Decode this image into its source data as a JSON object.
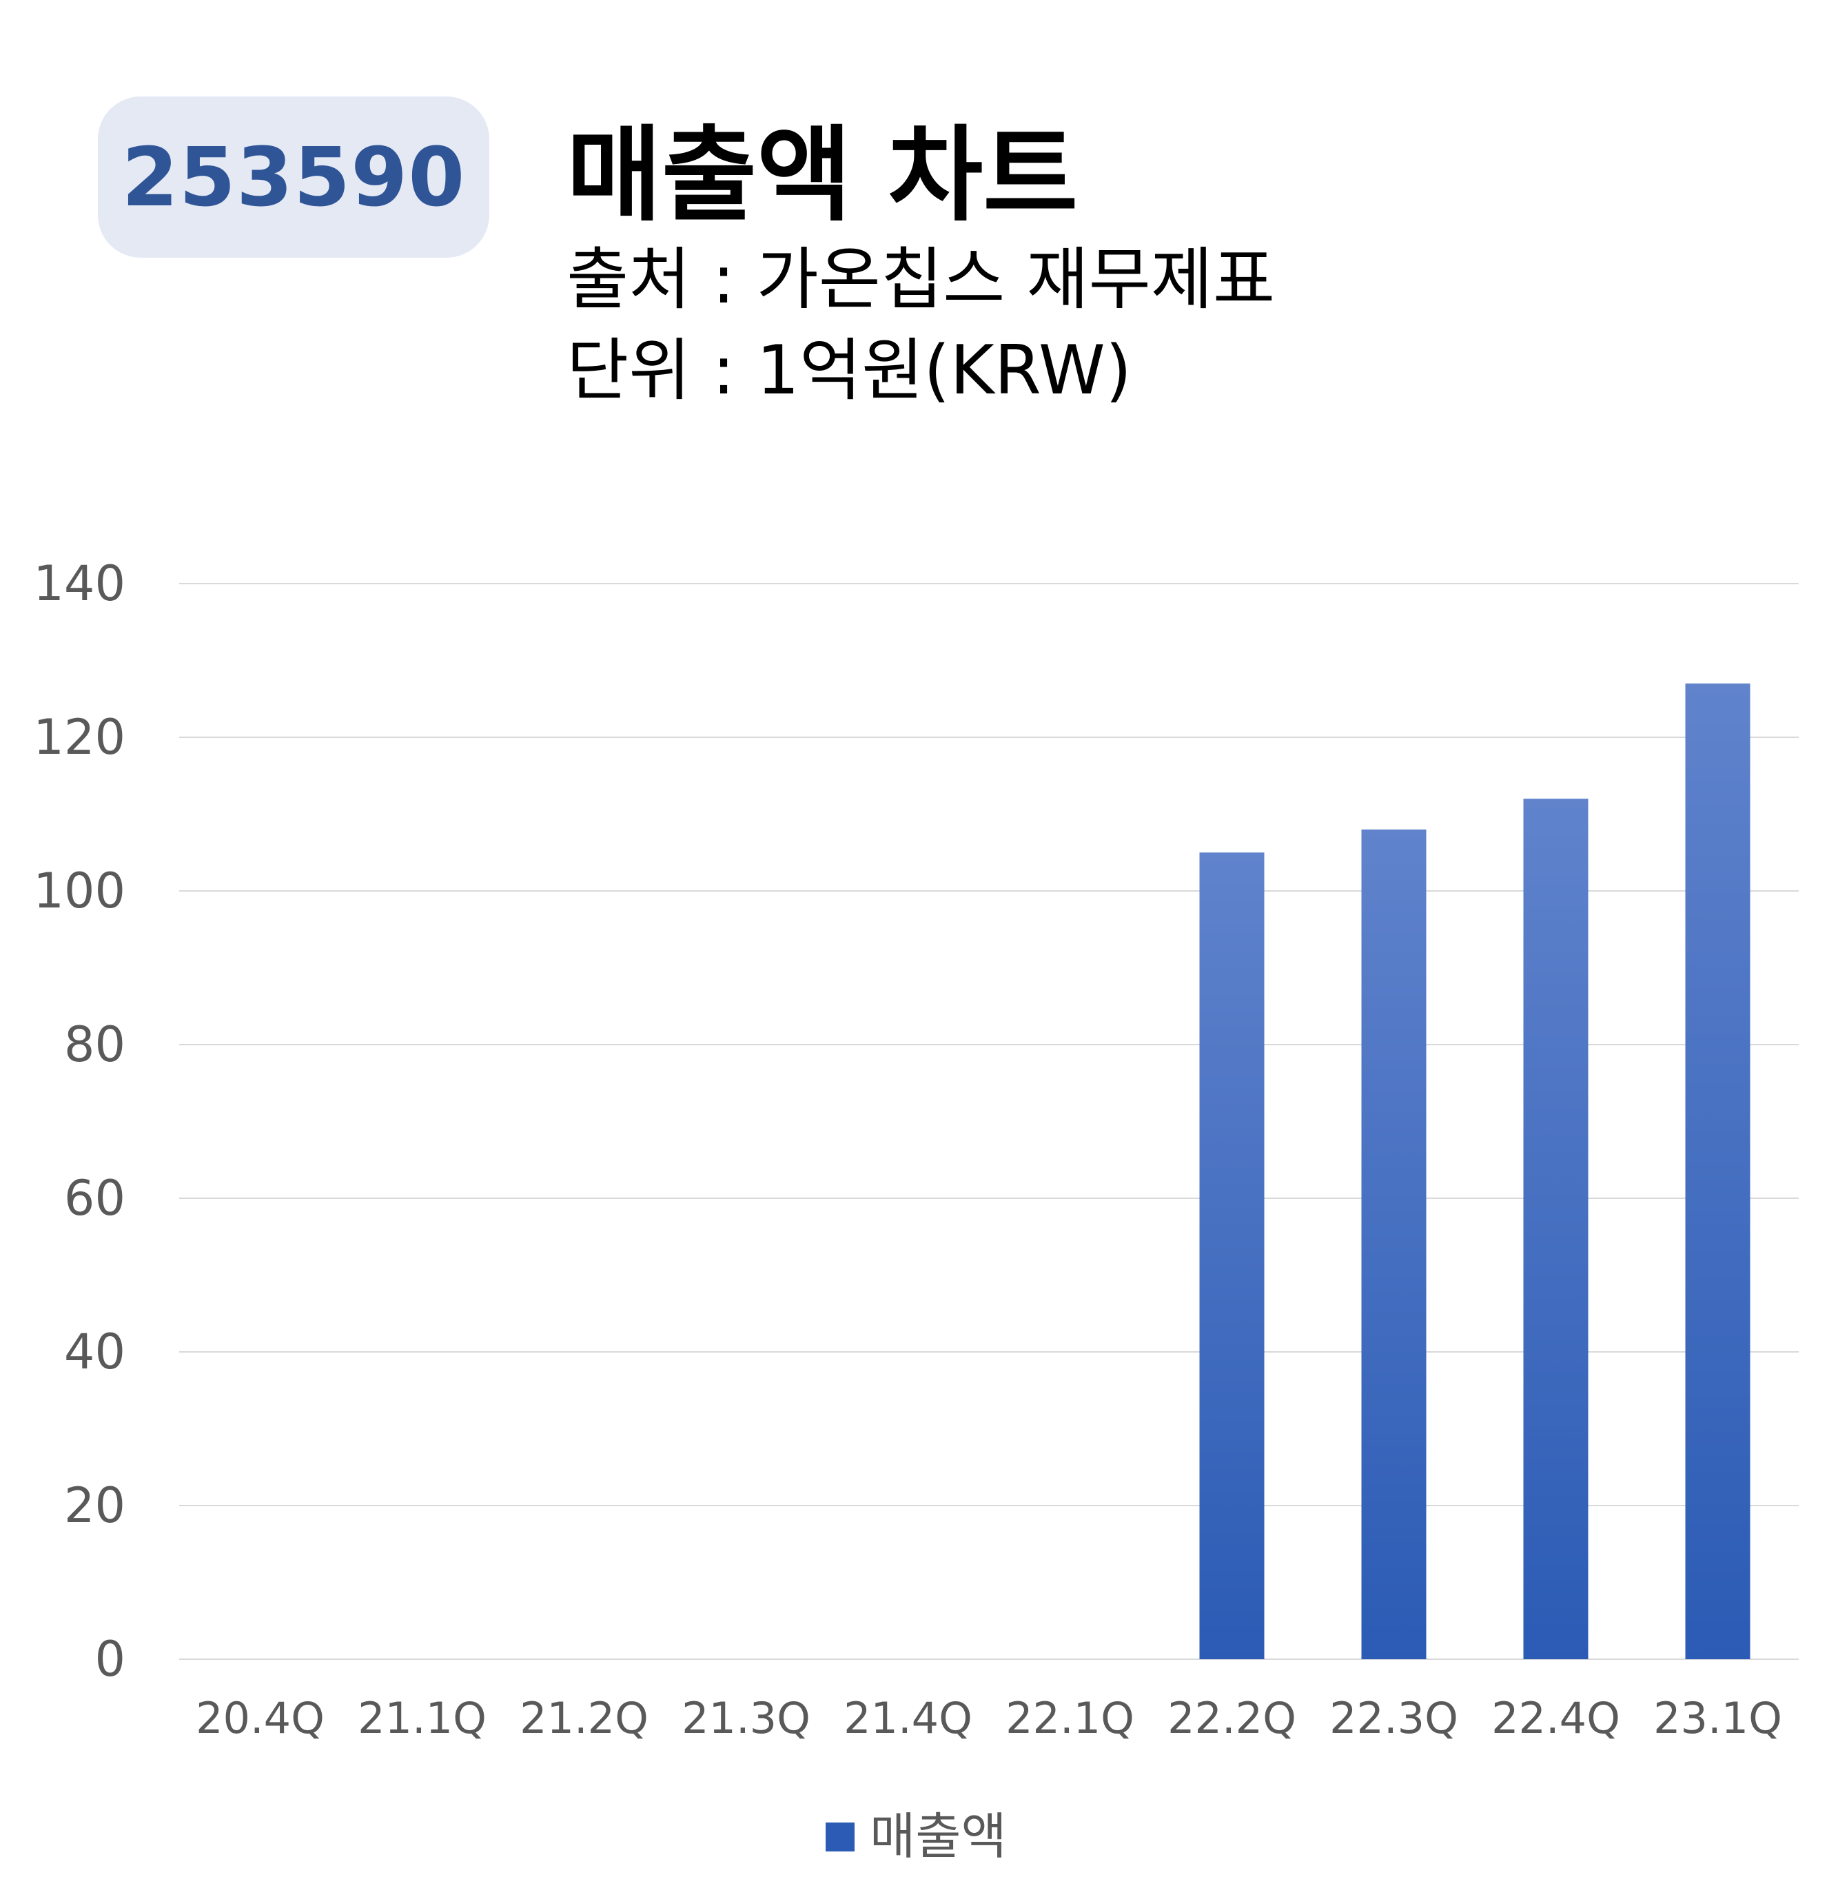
{
  "header": {
    "code": "253590",
    "title": "매출액 차트",
    "source": "출처 : 가온칩스 재무제표",
    "unit": "단위 : 1억원(KRW)"
  },
  "colors": {
    "badge_background": "#e4e9f4",
    "badge_text": "#2f5597",
    "bar_top": "#6083cc",
    "bar_bottom": "#2b5bb5",
    "grid": "#d9d9d9",
    "tick_text": "#595959"
  },
  "chart_data": {
    "type": "bar",
    "categories": [
      "20.4Q",
      "21.1Q",
      "21.2Q",
      "21.3Q",
      "21.4Q",
      "22.1Q",
      "22.2Q",
      "22.3Q",
      "22.4Q",
      "23.1Q"
    ],
    "series": [
      {
        "name": "매출액",
        "values": [
          0,
          0,
          0,
          0,
          0,
          0,
          105,
          108,
          112,
          127
        ]
      }
    ],
    "y_ticks": [
      "0",
      "20",
      "40",
      "60",
      "80",
      "100",
      "120",
      "140"
    ],
    "ylim": [
      0,
      140
    ],
    "grid": true,
    "legend": "bottom"
  }
}
